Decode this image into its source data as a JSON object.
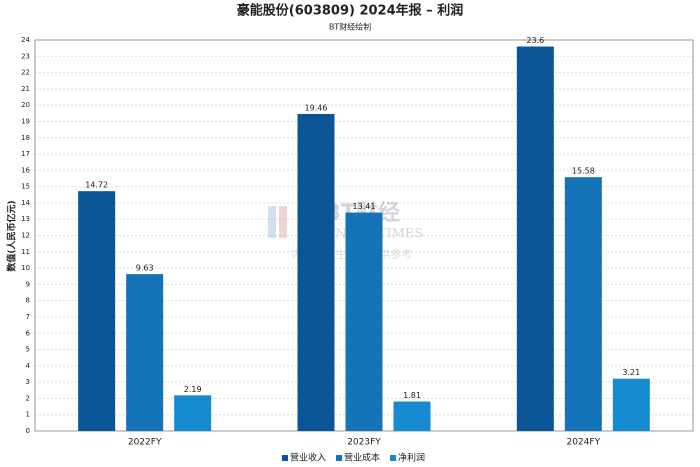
{
  "chart_data": {
    "type": "bar",
    "title": "豪能股份(603809) 2024年报 – 利润",
    "subtitle": "BT财经绘制",
    "y_label": "数值(人民币亿元)",
    "watermark": [
      "BT财经",
      "BUSINESS TIMES",
      "内容由AI生成，仅供参考"
    ],
    "categories": [
      "2022FY",
      "2023FY",
      "2024FY"
    ],
    "series": [
      {
        "name": "营业收入",
        "color": "#0b5597",
        "values": [
          14.72,
          19.46,
          23.6
        ]
      },
      {
        "name": "营业成本",
        "color": "#1573b8",
        "values": [
          9.63,
          13.41,
          15.58
        ]
      },
      {
        "name": "净利润",
        "color": "#168bd2",
        "values": [
          2.19,
          1.81,
          3.21
        ]
      }
    ],
    "ylim": [
      0,
      24
    ],
    "yticks": [
      0,
      1,
      2,
      3,
      4,
      5,
      6,
      7,
      8,
      9,
      10,
      11,
      12,
      13,
      14,
      15,
      16,
      17,
      18,
      19,
      20,
      21,
      22,
      23,
      24
    ],
    "grid": true,
    "legend": "bottom"
  }
}
